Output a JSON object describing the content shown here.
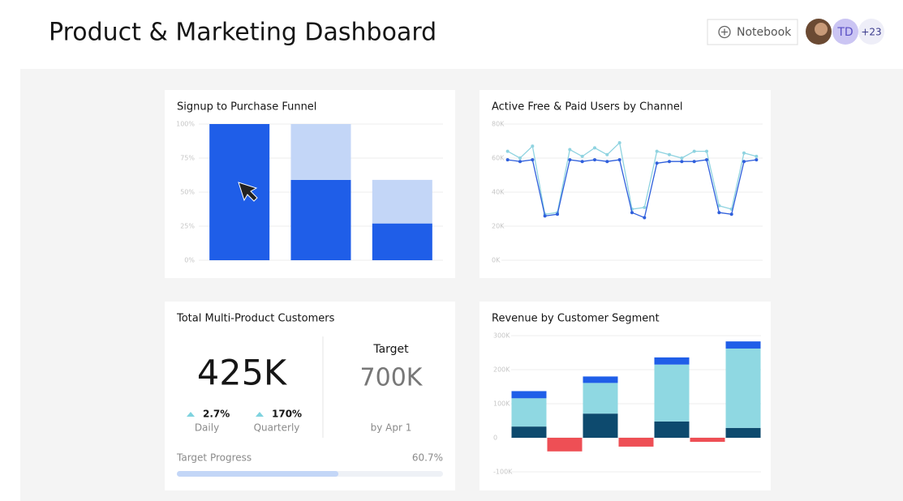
{
  "header": {
    "title": "Product & Marketing Dashboard",
    "button": "Notebook",
    "avatar_initials": "TD",
    "avatar_more": "+23"
  },
  "chart_data": [
    {
      "type": "bar",
      "title": "Signup to Purchase Funnel",
      "stacked": true,
      "categories": [
        null,
        null,
        null
      ],
      "series": [
        {
          "color": "#1f5ee8",
          "values": [
            100,
            59,
            27
          ]
        },
        {
          "color": "#c3d6f7",
          "values": [
            0,
            41,
            32
          ]
        }
      ],
      "ylim": [
        0,
        100
      ],
      "yticks": [
        {
          "value": 0,
          "label": "0%"
        },
        {
          "value": 25,
          "label": "25%"
        },
        {
          "value": 50,
          "label": "50%"
        },
        {
          "value": 75,
          "label": "75%"
        },
        {
          "value": 100,
          "label": "100%"
        }
      ],
      "grid": true
    },
    {
      "type": "line",
      "title": "Active Free & Paid Users by Channel",
      "categories": [
        null,
        null,
        null,
        null,
        null,
        null,
        null,
        null,
        null,
        null,
        null,
        null,
        null,
        null,
        null,
        null,
        null,
        null,
        null,
        null,
        null
      ],
      "series": [
        {
          "color": "#8fd3e0",
          "values": [
            64000,
            60000,
            67000,
            27000,
            28000,
            65000,
            61000,
            66000,
            62000,
            69000,
            30000,
            31000,
            64000,
            62000,
            60000,
            64000,
            64000,
            32000,
            30000,
            63000,
            61000
          ]
        },
        {
          "color": "#2f5fdc",
          "values": [
            59000,
            58000,
            59000,
            26000,
            27000,
            59000,
            58000,
            59000,
            58000,
            59000,
            28000,
            25000,
            57000,
            58000,
            58000,
            58000,
            59000,
            28000,
            27000,
            58000,
            59000
          ]
        }
      ],
      "ylim": [
        0,
        80000
      ],
      "yticks": [
        {
          "value": 0,
          "label": "0K"
        },
        {
          "value": 20000,
          "label": "20K"
        },
        {
          "value": 40000,
          "label": "40K"
        },
        {
          "value": 60000,
          "label": "60K"
        },
        {
          "value": 80000,
          "label": "80K"
        }
      ],
      "grid": true
    },
    {
      "type": "bar",
      "title": "Revenue by Customer Segment",
      "stacked": true,
      "categories": [
        null,
        null,
        null,
        null,
        null,
        null,
        null
      ],
      "series": [
        {
          "color": "#0d4a6e",
          "values": [
            33000,
            null,
            71000,
            null,
            48000,
            null,
            29000
          ]
        },
        {
          "color": "#8fd8e2",
          "values": [
            83000,
            null,
            90000,
            null,
            167000,
            null,
            233000
          ]
        },
        {
          "color": "#1f5ee8",
          "values": [
            21000,
            null,
            19000,
            null,
            21000,
            null,
            21000
          ]
        },
        {
          "color": "#ee4f55",
          "values": [
            null,
            -40000,
            null,
            -26000,
            null,
            -12000,
            null
          ]
        }
      ],
      "ylim": [
        -100000,
        300000
      ],
      "yticks": [
        {
          "value": -100000,
          "label": "-100K"
        },
        0,
        {
          "value": 100000,
          "label": "100K"
        },
        {
          "value": 200000,
          "label": "200K"
        },
        {
          "value": 300000,
          "label": "300K"
        }
      ],
      "grid": true
    }
  ],
  "kpi": {
    "title": "Total Multi-Product Customers",
    "value": "425K",
    "daily_change": "2.7%",
    "daily_label": "Daily",
    "quarterly_change": "170%",
    "quarterly_label": "Quarterly",
    "target_title": "Target",
    "target_value": "700K",
    "target_date": "by Apr 1",
    "progress_title": "Target Progress",
    "progress": 60.7,
    "progress_label": "60.7%"
  }
}
